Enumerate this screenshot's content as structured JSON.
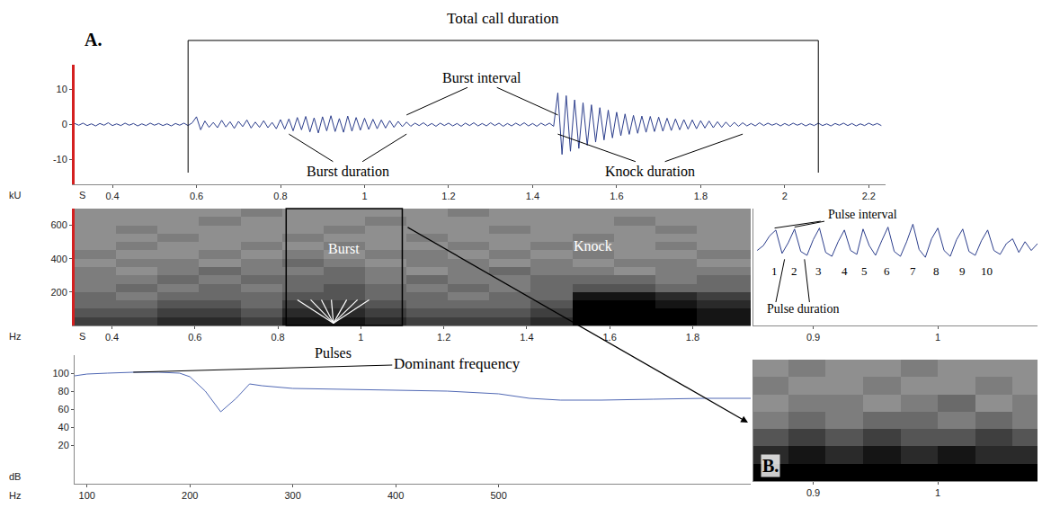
{
  "chart_data": [
    {
      "type": "line",
      "panel_label": "A.",
      "xlabel": "S",
      "ylabel": "kU",
      "color": "#2c3e8c",
      "x": [
        0.31,
        0.32,
        0.33,
        0.34,
        0.35,
        0.36,
        0.37,
        0.38,
        0.39,
        0.4,
        0.41,
        0.42,
        0.43,
        0.44,
        0.45,
        0.46,
        0.47,
        0.48,
        0.49,
        0.5,
        0.51,
        0.52,
        0.53,
        0.54,
        0.55,
        0.56,
        0.57,
        0.58,
        0.59,
        0.6,
        0.61,
        0.62,
        0.63,
        0.64,
        0.65,
        0.66,
        0.67,
        0.68,
        0.69,
        0.7,
        0.71,
        0.72,
        0.73,
        0.74,
        0.75,
        0.76,
        0.77,
        0.78,
        0.79,
        0.8,
        0.81,
        0.82,
        0.83,
        0.84,
        0.85,
        0.86,
        0.87,
        0.88,
        0.89,
        0.9,
        0.91,
        0.92,
        0.93,
        0.94,
        0.95,
        0.96,
        0.97,
        0.98,
        0.99,
        1,
        1.01,
        1.02,
        1.03,
        1.04,
        1.05,
        1.06,
        1.07,
        1.08,
        1.09,
        1.1,
        1.11,
        1.12,
        1.13,
        1.14,
        1.15,
        1.16,
        1.17,
        1.18,
        1.19,
        1.2,
        1.21,
        1.22,
        1.23,
        1.24,
        1.25,
        1.26,
        1.27,
        1.28,
        1.29,
        1.3,
        1.31,
        1.32,
        1.33,
        1.34,
        1.35,
        1.36,
        1.37,
        1.38,
        1.39,
        1.4,
        1.41,
        1.42,
        1.43,
        1.44,
        1.45,
        1.46,
        1.47,
        1.48,
        1.49,
        1.5,
        1.51,
        1.52,
        1.53,
        1.54,
        1.55,
        1.56,
        1.57,
        1.58,
        1.59,
        1.6,
        1.61,
        1.62,
        1.63,
        1.64,
        1.65,
        1.66,
        1.67,
        1.68,
        1.69,
        1.7,
        1.71,
        1.72,
        1.73,
        1.74,
        1.75,
        1.76,
        1.77,
        1.78,
        1.79,
        1.8,
        1.81,
        1.82,
        1.83,
        1.84,
        1.85,
        1.86,
        1.87,
        1.88,
        1.89,
        1.9,
        1.91,
        1.92,
        1.93,
        1.94,
        1.95,
        1.96,
        1.97,
        1.98,
        1.99,
        2,
        2.01,
        2.02,
        2.03,
        2.04,
        2.05,
        2.06,
        2.07,
        2.08,
        2.09,
        2.1,
        2.11,
        2.12,
        2.13,
        2.14,
        2.15,
        2.16,
        2.17,
        2.18,
        2.19,
        2.2,
        2.21,
        2.22,
        2.23
      ],
      "values": [
        0.3,
        -0.2,
        0.4,
        -0.3,
        0.2,
        -0.4,
        0.3,
        -0.2,
        0.5,
        -0.3,
        0.2,
        -0.3,
        0.4,
        -0.2,
        0.3,
        -0.4,
        0.2,
        -0.3,
        0.4,
        -0.2,
        0.3,
        -0.3,
        0.2,
        -0.4,
        0.3,
        -0.2,
        0.4,
        -0.3,
        0.5,
        2.2,
        -1.5,
        1.0,
        -0.8,
        0.6,
        -0.9,
        1.2,
        -0.7,
        0.8,
        -1.1,
        0.9,
        -0.6,
        1.3,
        -1.0,
        0.7,
        -0.8,
        1.1,
        -0.9,
        0.6,
        -1.2,
        1.4,
        -1.3,
        1.6,
        -1.8,
        2.0,
        -1.5,
        2.3,
        -2.1,
        1.9,
        -2.4,
        2.2,
        -1.8,
        2.5,
        -2.0,
        1.7,
        -2.2,
        2.4,
        -1.9,
        2.0,
        -1.6,
        1.8,
        -1.4,
        1.5,
        -1.2,
        1.3,
        -1.0,
        1.1,
        -0.8,
        0.9,
        -0.6,
        0.7,
        -0.5,
        0.4,
        -0.3,
        0.5,
        -0.4,
        0.3,
        -0.5,
        0.4,
        -0.3,
        0.4,
        -0.4,
        0.3,
        -0.5,
        0.4,
        -0.3,
        0.5,
        -0.4,
        0.3,
        -0.4,
        0.5,
        -0.3,
        0.4,
        -0.5,
        0.3,
        -0.4,
        0.4,
        -0.3,
        0.5,
        -0.4,
        0.3,
        -0.5,
        0.4,
        -0.3,
        0.4,
        -0.5,
        9.0,
        -8.5,
        8.2,
        -7.6,
        7.0,
        -6.8,
        6.2,
        -5.9,
        5.6,
        -5.0,
        4.8,
        -4.4,
        4.1,
        -3.8,
        3.5,
        -3.2,
        3.0,
        -2.8,
        2.6,
        -2.5,
        2.4,
        -2.2,
        2.3,
        -2.0,
        2.1,
        -1.9,
        1.8,
        -1.7,
        1.6,
        -1.5,
        1.4,
        -1.3,
        1.3,
        -1.2,
        1.1,
        -1.0,
        1.0,
        -0.9,
        0.8,
        -0.8,
        0.7,
        -0.6,
        0.6,
        -0.5,
        0.5,
        -0.4,
        0.3,
        -0.4,
        0.5,
        -0.3,
        0.4,
        -0.2,
        0.3,
        -0.4,
        0.3,
        -0.3,
        0.4,
        -0.2,
        0.3,
        -0.4,
        0.2,
        -0.3,
        0.4,
        -0.3,
        0.2,
        -0.4,
        0.3,
        -0.2,
        0.4,
        -0.3,
        0.3,
        -0.4,
        0.2,
        -0.3,
        0.4,
        -0.2,
        0.3,
        -0.3
      ],
      "xlim": [
        0.31,
        2.24
      ],
      "xticks": [
        0.4,
        0.6,
        0.8,
        1,
        1.2,
        1.4,
        1.6,
        1.8,
        2,
        2.2
      ],
      "ylim": [
        -17,
        17
      ],
      "yticks": [
        -10,
        0,
        10
      ],
      "annotations": [
        {
          "text": "Total call duration",
          "start": 0.58,
          "end": 2.08
        },
        {
          "text": "Burst duration",
          "start": 0.82,
          "end": 1.1
        },
        {
          "text": "Burst interval",
          "start": 1.1,
          "end": 1.46
        },
        {
          "text": "Knock duration",
          "start": 1.46,
          "end": 1.9
        }
      ]
    },
    {
      "type": "heatmap",
      "xlabel": "S",
      "ylabel": "Hz",
      "x_bins": [
        0.31,
        0.41,
        0.51,
        0.61,
        0.71,
        0.81,
        0.91,
        1.01,
        1.11,
        1.21,
        1.31,
        1.41,
        1.51,
        1.61,
        1.71,
        1.81,
        1.94
      ],
      "y_bins": [
        0,
        50,
        100,
        150,
        200,
        250,
        300,
        350,
        400,
        450,
        500,
        550,
        600,
        650,
        700
      ],
      "z": [
        [
          7,
          7,
          8,
          8,
          7,
          9,
          9,
          8,
          7,
          7,
          7,
          8,
          10,
          10,
          10,
          9
        ],
        [
          6,
          6,
          7,
          7,
          6,
          8,
          8,
          7,
          6,
          6,
          6,
          7,
          10,
          10,
          10,
          9
        ],
        [
          5,
          5,
          6,
          6,
          5,
          7,
          7,
          6,
          5,
          5,
          5,
          6,
          10,
          10,
          9,
          8
        ],
        [
          5,
          4,
          5,
          5,
          5,
          6,
          6,
          5,
          5,
          4,
          5,
          5,
          9,
          9,
          8,
          7
        ],
        [
          4,
          5,
          4,
          5,
          4,
          5,
          6,
          5,
          4,
          5,
          4,
          5,
          6,
          6,
          5,
          5
        ],
        [
          4,
          4,
          5,
          4,
          5,
          5,
          5,
          4,
          5,
          4,
          4,
          5,
          5,
          5,
          4,
          5
        ],
        [
          4,
          3,
          4,
          5,
          4,
          4,
          5,
          4,
          3,
          4,
          5,
          4,
          4,
          3,
          4,
          4
        ],
        [
          3,
          4,
          4,
          3,
          4,
          5,
          4,
          3,
          4,
          4,
          3,
          4,
          3,
          4,
          4,
          3
        ],
        [
          4,
          3,
          3,
          4,
          3,
          4,
          3,
          4,
          4,
          3,
          4,
          3,
          4,
          3,
          3,
          4
        ],
        [
          3,
          4,
          3,
          3,
          4,
          3,
          4,
          3,
          3,
          4,
          3,
          4,
          3,
          3,
          4,
          3
        ],
        [
          3,
          3,
          4,
          3,
          3,
          4,
          3,
          3,
          4,
          3,
          3,
          3,
          4,
          3,
          3,
          3
        ],
        [
          3,
          4,
          3,
          3,
          3,
          3,
          4,
          3,
          3,
          3,
          4,
          3,
          3,
          3,
          4,
          3
        ],
        [
          3,
          3,
          3,
          4,
          3,
          3,
          3,
          4,
          3,
          3,
          3,
          3,
          3,
          4,
          3,
          3
        ],
        [
          3,
          3,
          3,
          3,
          4,
          3,
          3,
          3,
          3,
          4,
          3,
          3,
          3,
          3,
          3,
          3
        ]
      ],
      "zlim": [
        0,
        10
      ],
      "xlim": [
        0.31,
        1.94
      ],
      "xticks": [
        0.4,
        0.6,
        0.8,
        1,
        1.2,
        1.4,
        1.6,
        1.8
      ],
      "ylim": [
        0,
        700
      ],
      "yticks": [
        200,
        400,
        600
      ],
      "annotations": [
        {
          "text": "Burst",
          "start": 0.82,
          "end": 1.1
        },
        {
          "text": "Knock",
          "start": 1.46,
          "end": 1.9
        },
        {
          "text": "Pulses",
          "times": [
            0.847,
            0.879,
            0.905,
            0.929,
            0.966,
            0.992,
            1.02
          ]
        }
      ]
    },
    {
      "type": "line",
      "xlabel": "Hz",
      "ylabel": "dB",
      "color": "#5068b4",
      "x": [
        88,
        100,
        120,
        145,
        170,
        190,
        200,
        215,
        230,
        245,
        258,
        270,
        300,
        350,
        400,
        450,
        500,
        530,
        560,
        600,
        650,
        700,
        745
      ],
      "values": [
        97,
        99,
        100,
        101,
        101,
        100,
        96,
        80,
        57,
        72,
        88,
        86,
        83,
        82,
        81,
        80,
        77,
        72,
        70,
        70,
        71,
        72,
        72
      ],
      "xlim": [
        88,
        745
      ],
      "xticks": [
        100,
        200,
        300,
        400,
        500
      ],
      "ylim": [
        -23,
        120
      ],
      "yticks": [
        20,
        40,
        60,
        80,
        100
      ],
      "annotations": [
        {
          "text": "Dominant frequency",
          "x": 145,
          "y": 101
        }
      ]
    },
    {
      "type": "line",
      "color": "#2c3e8c",
      "tick_labels": "x",
      "x": [
        0.855,
        0.86,
        0.865,
        0.87,
        0.875,
        0.88,
        0.885,
        0.89,
        0.895,
        0.9,
        0.905,
        0.91,
        0.915,
        0.92,
        0.925,
        0.93,
        0.935,
        0.94,
        0.945,
        0.95,
        0.955,
        0.96,
        0.965,
        0.97,
        0.975,
        0.98,
        0.985,
        0.99,
        0.995,
        1,
        1.005,
        1.01,
        1.015,
        1.02,
        1.025,
        1.03,
        1.035,
        1.04,
        1.045,
        1.05,
        1.055,
        1.06,
        1.065,
        1.07,
        1.075,
        1.08
      ],
      "values": [
        -0.3,
        0.2,
        1.2,
        1.8,
        -0.6,
        0.5,
        1.9,
        -0.4,
        -0.8,
        0.8,
        2.0,
        -0.5,
        -0.9,
        0.6,
        1.8,
        -0.3,
        -0.7,
        1.9,
        0.2,
        -0.8,
        0.7,
        2.1,
        -0.4,
        -0.9,
        0.6,
        2.4,
        -0.2,
        -1.0,
        0.9,
        2.0,
        -0.3,
        -0.9,
        0.8,
        1.9,
        -0.4,
        -0.8,
        0.7,
        1.8,
        -0.3,
        -0.7,
        0.4,
        0.9,
        -0.5,
        0.6,
        -0.3,
        0.4
      ],
      "xlim": [
        0.852,
        1.08
      ],
      "xticks": [
        0.9,
        1
      ],
      "ylim": [
        -8,
        4
      ],
      "pulses": {
        "labels": [
          1,
          2,
          3,
          4,
          5,
          6,
          7,
          8,
          9,
          10
        ],
        "times": [
          0.869,
          0.885,
          0.904,
          0.925,
          0.941,
          0.959,
          0.98,
          0.999,
          1.02,
          1.039
        ]
      },
      "annotations": [
        {
          "text": "Pulse interval",
          "start": 0.869,
          "end": 0.885
        },
        {
          "text": "Pulse duration",
          "start": 0.877,
          "end": 0.893
        }
      ]
    },
    {
      "type": "heatmap",
      "panel_label": "B.",
      "tick_labels": "x",
      "x_bins": [
        0.852,
        0.88,
        0.91,
        0.94,
        0.97,
        1.0,
        1.03,
        1.06,
        1.08
      ],
      "y_bins": [
        0,
        100,
        200,
        300,
        400,
        500,
        600,
        700
      ],
      "z": [
        [
          10,
          10,
          10,
          10,
          10,
          10,
          10,
          10
        ],
        [
          8,
          9,
          8,
          9,
          8,
          9,
          8,
          8
        ],
        [
          6,
          7,
          6,
          7,
          6,
          6,
          7,
          6
        ],
        [
          4,
          5,
          4,
          5,
          5,
          4,
          5,
          4
        ],
        [
          3,
          4,
          4,
          3,
          4,
          5,
          3,
          4
        ],
        [
          4,
          3,
          3,
          4,
          3,
          3,
          4,
          3
        ],
        [
          3,
          4,
          3,
          3,
          4,
          3,
          3,
          3
        ]
      ],
      "zlim": [
        0,
        10
      ],
      "xlim": [
        0.852,
        1.08
      ],
      "xticks": [
        0.9,
        1
      ],
      "ylim": [
        0,
        700
      ]
    }
  ]
}
